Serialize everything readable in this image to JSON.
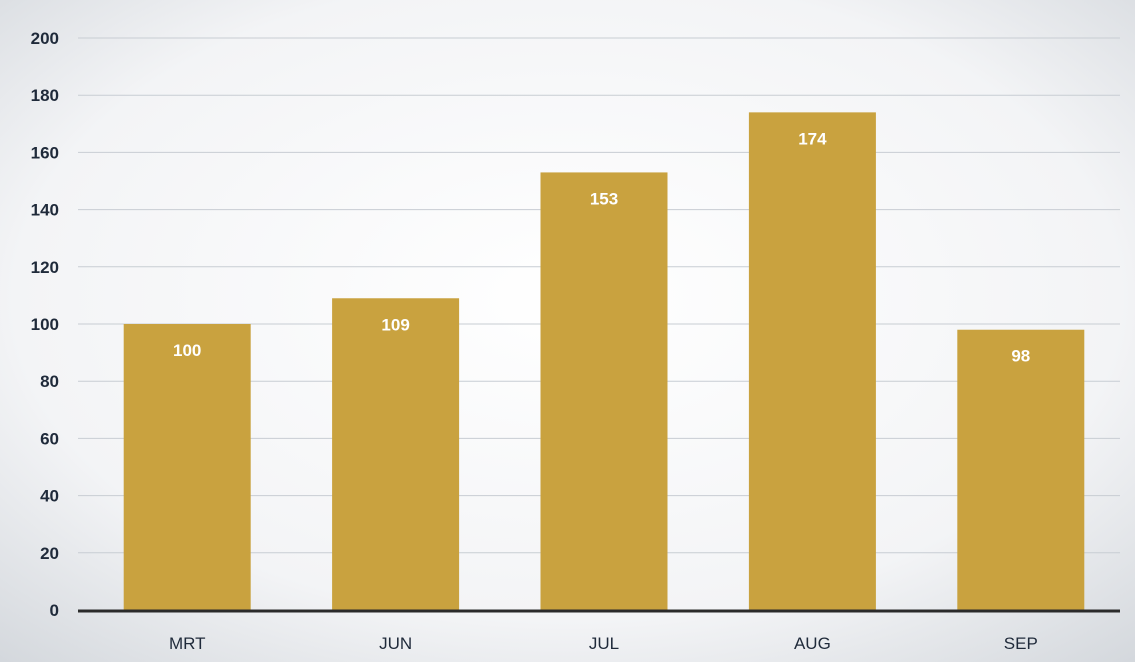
{
  "chart_data": {
    "type": "bar",
    "title": "",
    "xlabel": "",
    "ylabel": "",
    "categories": [
      "MRT",
      "JUN",
      "JUL",
      "AUG",
      "SEP"
    ],
    "values": [
      100,
      109,
      153,
      174,
      98
    ],
    "ylim": [
      0,
      200
    ],
    "yticks": [
      0,
      20,
      40,
      60,
      80,
      100,
      120,
      140,
      160,
      180,
      200
    ],
    "grid": true,
    "legend": "none",
    "data_labels": true,
    "colors": {
      "bar": "#c9a23f",
      "label_text": "#ffffff",
      "tick_text": "#1f2a3a",
      "gridline": "#c8cdd3",
      "axis": "#2b2b2b",
      "background_center": "#ffffff",
      "background_edge": "#d3d7dc"
    }
  }
}
